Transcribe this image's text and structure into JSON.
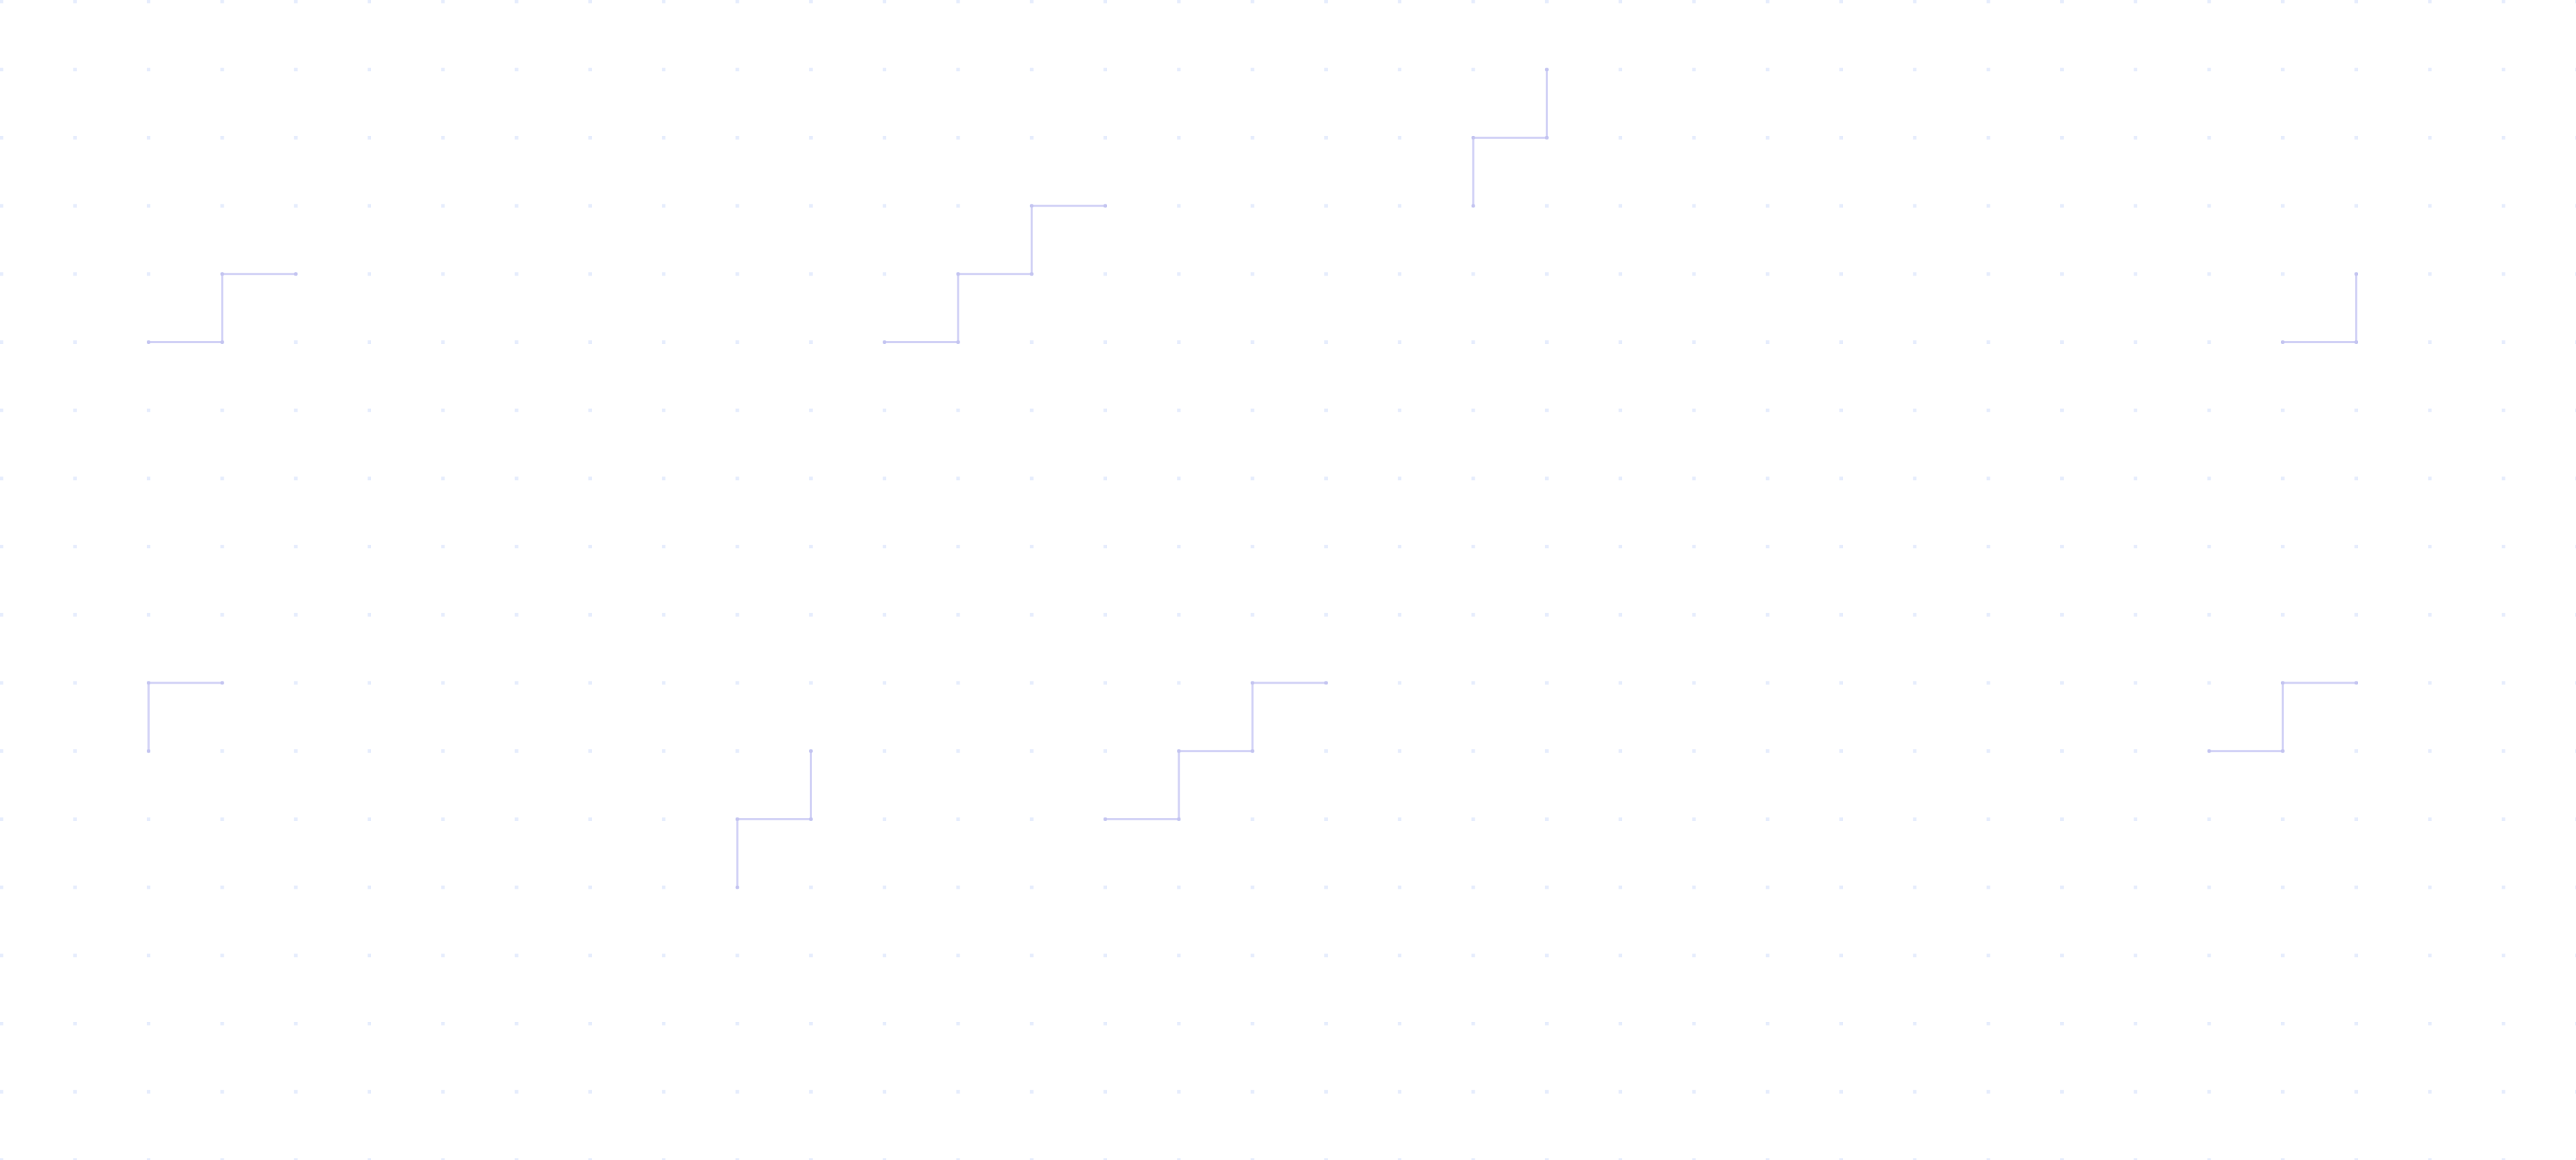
{
  "background": {
    "pattern": "dot-grid-with-step-lines",
    "colors": {
      "page": "#ffffff",
      "dot": "#e6edfd",
      "line": "#d2d2f6",
      "line_node": "#c4c4f0"
    }
  }
}
